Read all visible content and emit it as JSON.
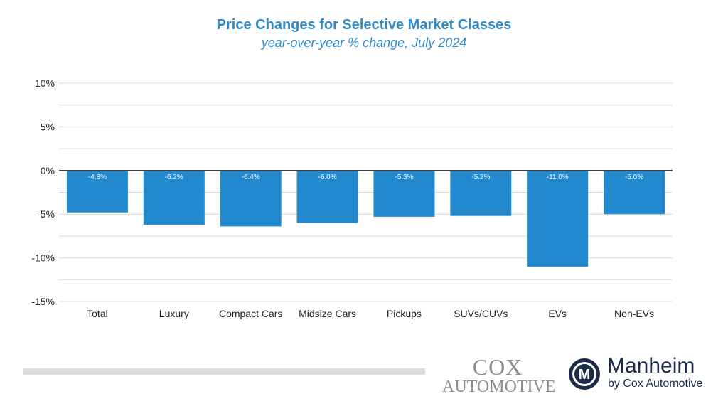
{
  "title": "Price Changes for Selective Market Classes",
  "subtitle": "year-over-year % change, July 2024",
  "colors": {
    "bar": "#2389cf",
    "title": "#2f8ac9",
    "grid": "#d9d9d9",
    "zero_line": "#000000"
  },
  "chart_data": {
    "type": "bar",
    "title": "Price Changes for Selective Market Classes",
    "subtitle": "year-over-year % change, July 2024",
    "categories": [
      "Total",
      "Luxury",
      "Compact Cars",
      "Midsize Cars",
      "Pickups",
      "SUVs/CUVs",
      "EVs",
      "Non-EVs"
    ],
    "values": [
      -4.8,
      -6.2,
      -6.4,
      -6.0,
      -5.3,
      -5.2,
      -11.0,
      -5.0
    ],
    "data_labels": [
      "-4.8%",
      "-6.2%",
      "-6.4%",
      "-6.0%",
      "-5.3%",
      "-5.2%",
      "-11.0%",
      "-5.0%"
    ],
    "ylim": [
      -15,
      10
    ],
    "yticks": [
      10,
      5,
      0,
      -5,
      -10,
      -15
    ],
    "ytick_labels": [
      "10%",
      "5%",
      "0%",
      "-5%",
      "-10%",
      "-15%"
    ],
    "minor_gridlines": [
      7.5,
      2.5,
      -2.5,
      -7.5,
      -12.5
    ],
    "grid": true,
    "xlabel": "",
    "ylabel": ""
  },
  "logos": {
    "cox_top": "COX",
    "cox_bottom": "AUTOMOTIVE",
    "manheim_name": "Manheim",
    "manheim_by": "by Cox Automotive",
    "manheim_emblem_letter": "M"
  }
}
